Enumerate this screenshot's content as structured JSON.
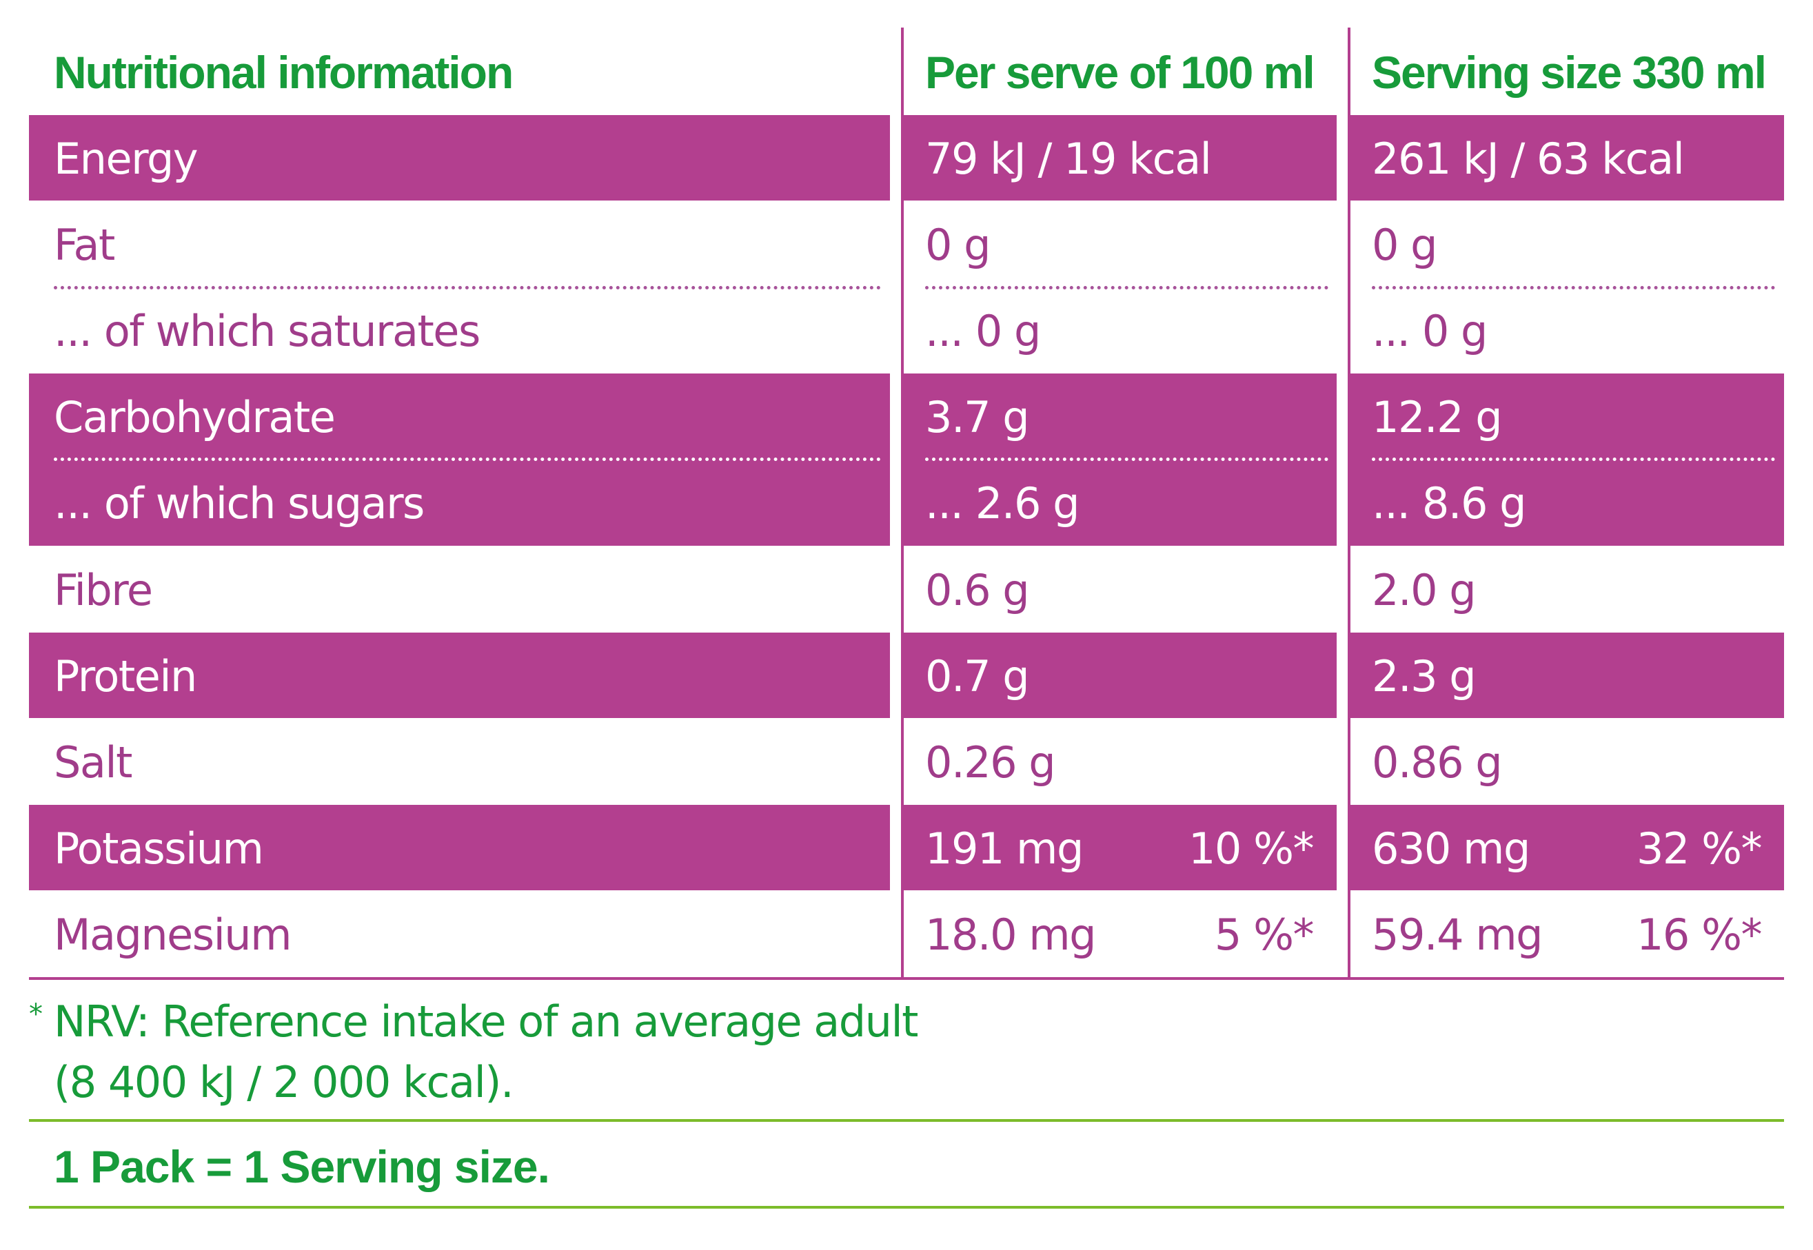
{
  "header": {
    "col1": "Nutritional information",
    "col2": "Per serve of 100 ml",
    "col3": "Serving size 330 ml"
  },
  "rows": [
    {
      "label": "Energy",
      "per100": "79 kJ / 19 kcal",
      "serving": "261 kJ / 63 kcal"
    },
    {
      "label": "Fat",
      "per100": "0 g",
      "serving": "0 g"
    },
    {
      "label": "... of which saturates",
      "per100": "... 0 g",
      "serving": "... 0 g"
    },
    {
      "label": "Carbohydrate",
      "per100": "3.7 g",
      "serving": "12.2 g"
    },
    {
      "label": "... of which sugars",
      "per100": "... 2.6 g",
      "serving": "... 8.6 g"
    },
    {
      "label": "Fibre",
      "per100": "0.6 g",
      "serving": "2.0 g"
    },
    {
      "label": "Protein",
      "per100": "0.7 g",
      "serving": "2.3 g"
    },
    {
      "label": "Salt",
      "per100": "0.26 g",
      "serving": "0.86 g"
    },
    {
      "label": "Potassium",
      "per100": "191 mg",
      "per100_nrv": "10 %*",
      "serving": "630 mg",
      "serving_nrv": "32 %*"
    },
    {
      "label": "Magnesium",
      "per100": "18.0 mg",
      "per100_nrv": "5 %*",
      "serving": "59.4 mg",
      "serving_nrv": "16 %*"
    }
  ],
  "footnote": {
    "marker": "*",
    "line1": "NRV: Reference intake of an average adult",
    "line2": "(8 400 kJ / 2 000 kcal)."
  },
  "pack_note": "1 Pack = 1 Serving size.",
  "colors": {
    "purple": "#b33f8f",
    "purple_text": "#a03c8a",
    "green_text": "#179b3a",
    "green_line": "#7cbc2a"
  }
}
